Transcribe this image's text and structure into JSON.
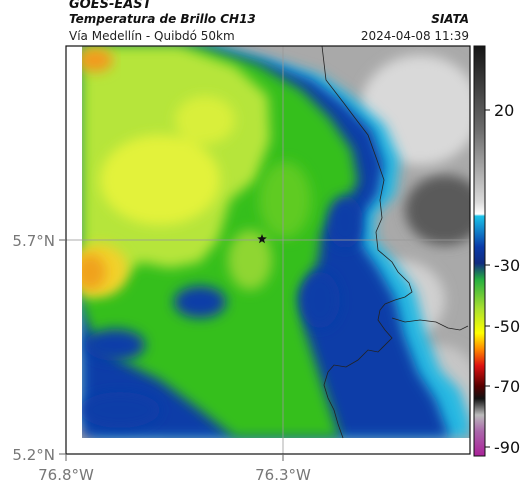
{
  "header": {
    "satellite": "GOES-EAST",
    "product": "Temperatura de Brillo CH13",
    "organization": "SIATA",
    "region": "Vía Medellín - Quibdó 50km",
    "datetime": "2024-04-08 11:39"
  },
  "axes": {
    "lat_labels": [
      "5.7°N",
      "5.2°N"
    ],
    "lon_labels": [
      "76.8°W",
      "76.3°W"
    ]
  },
  "colorbar": {
    "labels": [
      "20",
      "-30",
      "-50",
      "-70",
      "-90"
    ]
  },
  "marker": {
    "icon": "star-icon"
  },
  "colors": {
    "cold_blue": "#0a3aa8",
    "cyan": "#2ab8e0",
    "green": "#3ec11c",
    "yellow_green": "#bfe83a",
    "orange": "#f39a1c",
    "gray": "#9c9c9c"
  }
}
